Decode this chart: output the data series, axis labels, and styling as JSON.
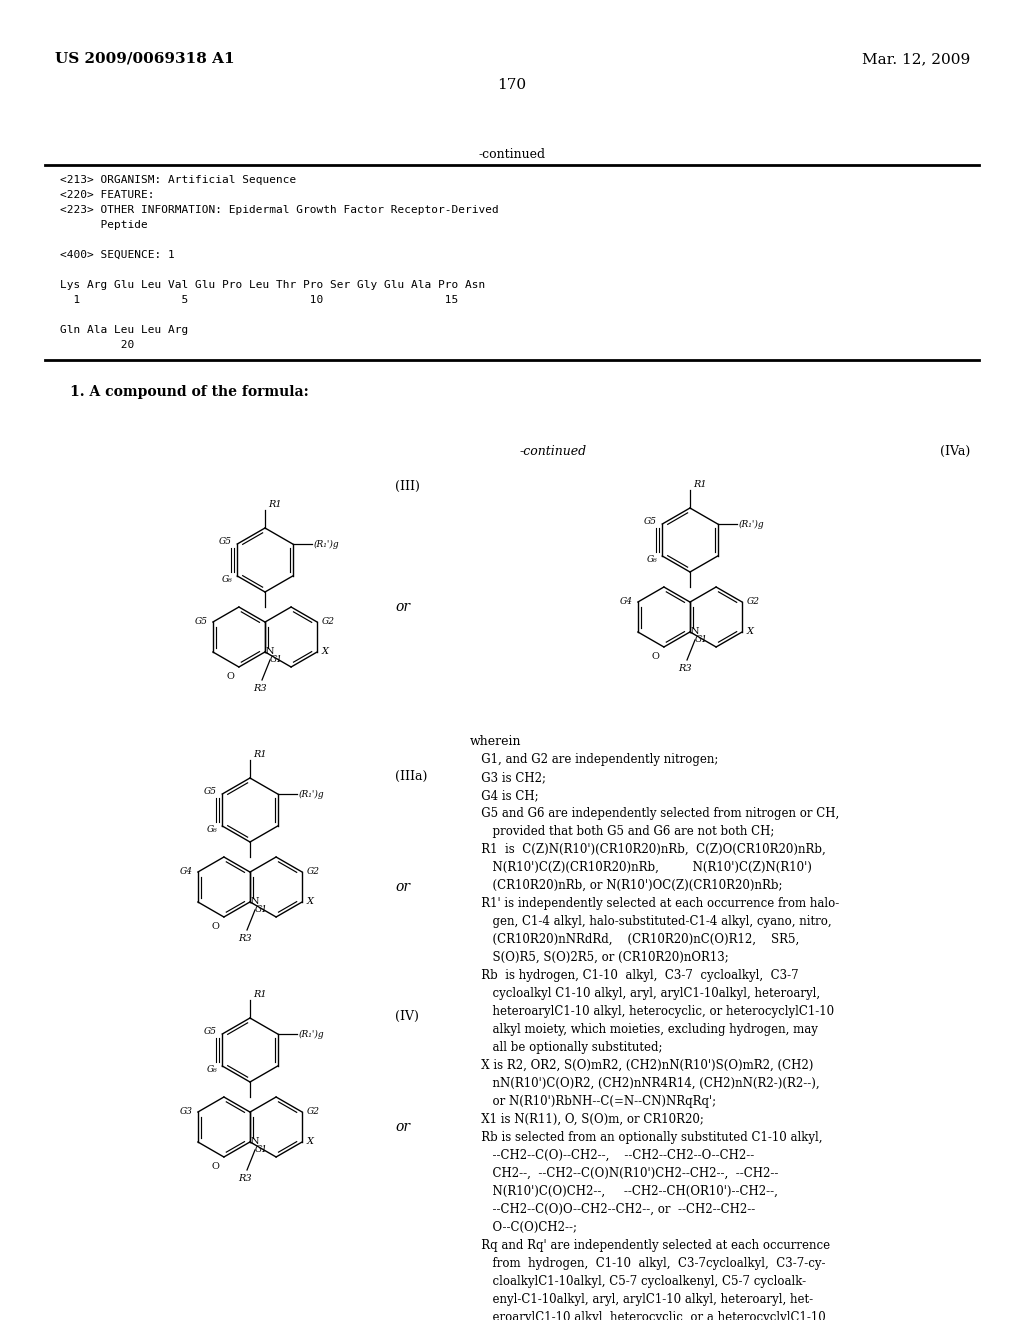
{
  "header_left": "US 2009/0069318 A1",
  "header_right": "Mar. 12, 2009",
  "page_number": "170",
  "bg_color": "#ffffff",
  "text_color": "#000000",
  "continued_label": "-continued",
  "seq_lines": [
    "<213> ORGANISM: Artificial Sequence",
    "<220> FEATURE:",
    "<223> OTHER INFORMATION: Epidermal Growth Factor Receptor-Derived",
    "      Peptide",
    "",
    "<400> SEQUENCE: 1",
    "",
    "Lys Arg Glu Leu Val Glu Pro Leu Thr Pro Ser Gly Glu Ala Pro Asn",
    "  1               5                  10                  15",
    "",
    "Gln Ala Leu Leu Arg",
    "         20"
  ],
  "claim_text": "1. A compound of the formula:",
  "right_continued": "-continued",
  "wherein_lines": [
    "wherein",
    "   G1, and G2 are independently nitrogen;",
    "   G3 is CH2;",
    "   G4 is CH;",
    "   G5 and G6 are independently selected from nitrogen or CH,",
    "      provided that both G5 and G6 are not both CH;",
    "   R1  is  C(Z)N(R10')(CR10R20)nRb,  C(Z)O(CR10R20)nRb,",
    "      N(R10')C(Z)(CR10R20)nRb,         N(R10')C(Z)N(R10')",
    "      (CR10R20)nRb, or N(R10')OC(Z)(CR10R20)nRb;",
    "   R1' is independently selected at each occurrence from halo-",
    "      gen, C1-4 alkyl, halo-substituted-C1-4 alkyl, cyano, nitro,",
    "      (CR10R20)nNRdRd,    (CR10R20)nC(O)R12,    SR5,",
    "      S(O)R5, S(O)2R5, or (CR10R20)nOR13;",
    "   Rb  is hydrogen, C1-10  alkyl,  C3-7  cycloalkyl,  C3-7",
    "      cycloalkyl C1-10 alkyl, aryl, arylC1-10alkyl, heteroaryl,",
    "      heteroarylC1-10 alkyl, heterocyclic, or heterocyclylC1-10",
    "      alkyl moiety, which moieties, excluding hydrogen, may",
    "      all be optionally substituted;",
    "   X is R2, OR2, S(O)mR2, (CH2)nN(R10')S(O)mR2, (CH2)",
    "      nN(R10')C(O)R2, (CH2)nNR4R14, (CH2)nN(R2-)(R2--),",
    "      or N(R10')RbNH--C(=N--CN)NRqRq';",
    "   X1 is N(R11), O, S(O)m, or CR10R20;",
    "   Rb is selected from an optionally substituted C1-10 alkyl,",
    "      --CH2--C(O)--CH2--,    --CH2--CH2--O--CH2--",
    "      CH2--,  --CH2--C(O)N(R10')CH2--CH2--,  --CH2--",
    "      N(R10')C(O)CH2--,     --CH2--CH(OR10')--CH2--,",
    "      --CH2--C(O)O--CH2--CH2--, or  --CH2--CH2--",
    "      O--C(O)CH2--;",
    "   Rq and Rq' are independently selected at each occurrence",
    "      from  hydrogen,  C1-10  alkyl,  C3-7cycloalkyl,  C3-7-cy-",
    "      cloalkylC1-10alkyl, C5-7 cycloalkenyl, C5-7 cycloalk-",
    "      enyl-C1-10alkyl, aryl, arylC1-10 alkyl, heteroaryl, het-",
    "      eroarylC1-10 alkyl, heterocyclic, or a heterocyclylC1-10"
  ]
}
